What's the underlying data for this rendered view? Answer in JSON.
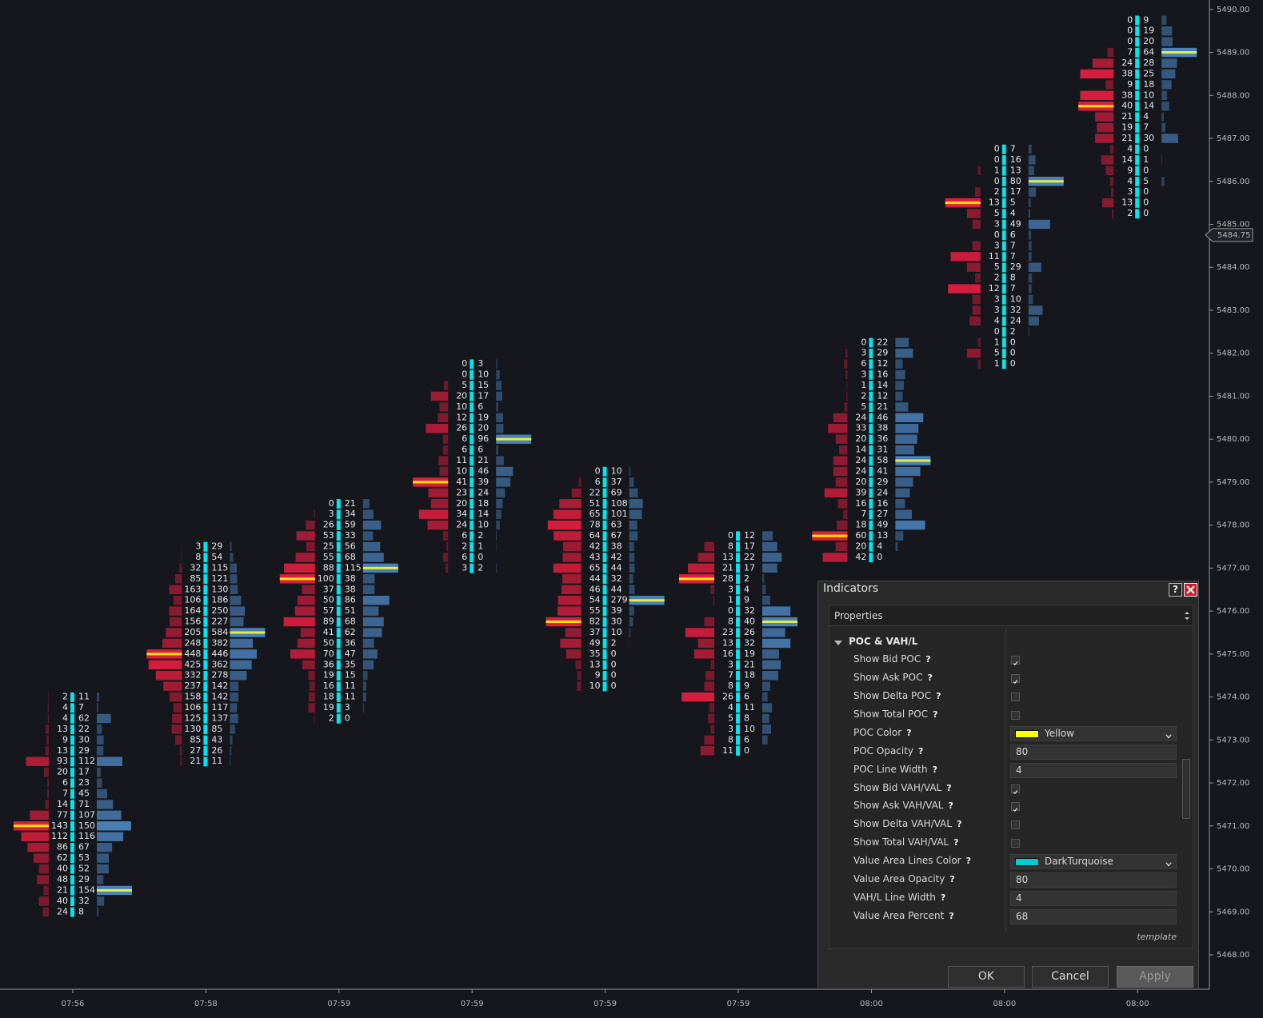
{
  "chart_data": {
    "type": "footprint",
    "ylim": [
      5467.2,
      5490.22
    ],
    "yticks": [
      {
        "value": 5490,
        "label": "5490.00"
      },
      {
        "value": 5489,
        "label": "5489.00"
      },
      {
        "value": 5488,
        "label": "5488.00"
      },
      {
        "value": 5487,
        "label": "5487.00"
      },
      {
        "value": 5486,
        "label": "5486.00"
      },
      {
        "value": 5485,
        "label": "5485.00"
      },
      {
        "value": 5484,
        "label": "5484.00"
      },
      {
        "value": 5483,
        "label": "5483.00"
      },
      {
        "value": 5482,
        "label": "5482.00"
      },
      {
        "value": 5481,
        "label": "5481.00"
      },
      {
        "value": 5480,
        "label": "5480.00"
      },
      {
        "value": 5479,
        "label": "5479.00"
      },
      {
        "value": 5478,
        "label": "5478.00"
      },
      {
        "value": 5477,
        "label": "5477.00"
      },
      {
        "value": 5476,
        "label": "5476.00"
      },
      {
        "value": 5475,
        "label": "5475.00"
      },
      {
        "value": 5474,
        "label": "5474.00"
      },
      {
        "value": 5473,
        "label": "5473.00"
      },
      {
        "value": 5472,
        "label": "5472.00"
      },
      {
        "value": 5471,
        "label": "5471.00"
      },
      {
        "value": 5470,
        "label": "5470.00"
      },
      {
        "value": 5469,
        "label": "5469.00"
      },
      {
        "value": 5468,
        "label": "5468.00"
      }
    ],
    "current_price": 5484.75,
    "bars": [
      {
        "time": "07:56",
        "high": 5474.0,
        "low": 5469.0,
        "rows": [
          [
            2,
            11
          ],
          [
            4,
            7
          ],
          [
            4,
            62
          ],
          [
            13,
            22
          ],
          [
            9,
            30
          ],
          [
            13,
            29
          ],
          [
            93,
            112
          ],
          [
            20,
            17
          ],
          [
            6,
            23
          ],
          [
            7,
            45
          ],
          [
            14,
            71
          ],
          [
            77,
            107
          ],
          [
            143,
            150
          ],
          [
            112,
            116
          ],
          [
            86,
            67
          ],
          [
            62,
            53
          ],
          [
            40,
            52
          ],
          [
            48,
            29
          ],
          [
            21,
            154
          ],
          [
            40,
            32
          ],
          [
            24,
            8
          ]
        ]
      },
      {
        "time": "07:58",
        "high": 5477.5,
        "low": 5472.5,
        "rows": [
          [
            3,
            29
          ],
          [
            8,
            54
          ],
          [
            32,
            115
          ],
          [
            85,
            121
          ],
          [
            163,
            130
          ],
          [
            106,
            186
          ],
          [
            164,
            250
          ],
          [
            156,
            227
          ],
          [
            205,
            584
          ],
          [
            248,
            382
          ],
          [
            448,
            446
          ],
          [
            425,
            362
          ],
          [
            332,
            278
          ],
          [
            237,
            142
          ],
          [
            158,
            142
          ],
          [
            106,
            117
          ],
          [
            125,
            137
          ],
          [
            130,
            85
          ],
          [
            85,
            43
          ],
          [
            27,
            26
          ],
          [
            21,
            11
          ]
        ]
      },
      {
        "time": "07:59",
        "high": 5478.5,
        "low": 5473.5,
        "rows": [
          [
            0,
            21
          ],
          [
            3,
            34
          ],
          [
            26,
            59
          ],
          [
            53,
            33
          ],
          [
            25,
            56
          ],
          [
            55,
            68
          ],
          [
            88,
            115
          ],
          [
            100,
            38
          ],
          [
            37,
            38
          ],
          [
            50,
            86
          ],
          [
            57,
            51
          ],
          [
            89,
            68
          ],
          [
            41,
            62
          ],
          [
            50,
            36
          ],
          [
            70,
            47
          ],
          [
            36,
            35
          ],
          [
            19,
            15
          ],
          [
            16,
            11
          ],
          [
            18,
            11
          ],
          [
            19,
            3
          ],
          [
            2,
            0
          ]
        ]
      },
      {
        "time": "07:59",
        "high": 5481.75,
        "low": 5477.0,
        "rows": [
          [
            0,
            3
          ],
          [
            0,
            10
          ],
          [
            5,
            15
          ],
          [
            20,
            17
          ],
          [
            10,
            6
          ],
          [
            12,
            19
          ],
          [
            26,
            20
          ],
          [
            6,
            96
          ],
          [
            6,
            6
          ],
          [
            11,
            21
          ],
          [
            10,
            46
          ],
          [
            41,
            39
          ],
          [
            23,
            24
          ],
          [
            20,
            18
          ],
          [
            34,
            14
          ],
          [
            24,
            10
          ],
          [
            6,
            2
          ],
          [
            2,
            1
          ],
          [
            6,
            0
          ],
          [
            3,
            2
          ]
        ]
      },
      {
        "time": "07:59",
        "high": 5479.25,
        "low": 5474.25,
        "rows": [
          [
            0,
            10
          ],
          [
            6,
            37
          ],
          [
            22,
            69
          ],
          [
            51,
            108
          ],
          [
            65,
            101
          ],
          [
            78,
            63
          ],
          [
            64,
            67
          ],
          [
            42,
            38
          ],
          [
            43,
            42
          ],
          [
            65,
            44
          ],
          [
            44,
            32
          ],
          [
            46,
            44
          ],
          [
            54,
            279
          ],
          [
            55,
            39
          ],
          [
            82,
            30
          ],
          [
            37,
            10
          ],
          [
            49,
            2
          ],
          [
            35,
            0
          ],
          [
            13,
            0
          ],
          [
            9,
            0
          ],
          [
            10,
            0
          ]
        ]
      },
      {
        "time": "07:59",
        "high": 5477.75,
        "low": 5472.75,
        "rows": [
          [
            0,
            12
          ],
          [
            8,
            17
          ],
          [
            13,
            22
          ],
          [
            21,
            17
          ],
          [
            28,
            2
          ],
          [
            3,
            4
          ],
          [
            1,
            9
          ],
          [
            0,
            32
          ],
          [
            8,
            40
          ],
          [
            23,
            26
          ],
          [
            13,
            32
          ],
          [
            16,
            19
          ],
          [
            3,
            21
          ],
          [
            7,
            18
          ],
          [
            8,
            9
          ],
          [
            26,
            6
          ],
          [
            4,
            11
          ],
          [
            5,
            8
          ],
          [
            3,
            10
          ],
          [
            8,
            6
          ],
          [
            11,
            0
          ]
        ]
      },
      {
        "time": "08:00",
        "high": 5482.25,
        "low": 5477.25,
        "rows": [
          [
            0,
            22
          ],
          [
            3,
            29
          ],
          [
            6,
            12
          ],
          [
            3,
            16
          ],
          [
            1,
            14
          ],
          [
            2,
            12
          ],
          [
            5,
            21
          ],
          [
            24,
            46
          ],
          [
            33,
            38
          ],
          [
            20,
            36
          ],
          [
            14,
            31
          ],
          [
            24,
            58
          ],
          [
            24,
            41
          ],
          [
            20,
            29
          ],
          [
            39,
            24
          ],
          [
            16,
            16
          ],
          [
            7,
            27
          ],
          [
            18,
            49
          ],
          [
            60,
            13
          ],
          [
            20,
            4
          ],
          [
            42,
            0
          ]
        ]
      },
      {
        "time": "08:00",
        "high": 5486.75,
        "low": 5481.75,
        "rows": [
          [
            0,
            7
          ],
          [
            0,
            16
          ],
          [
            1,
            13
          ],
          [
            0,
            80
          ],
          [
            2,
            17
          ],
          [
            13,
            5
          ],
          [
            5,
            4
          ],
          [
            3,
            49
          ],
          [
            0,
            6
          ],
          [
            3,
            7
          ],
          [
            11,
            7
          ],
          [
            5,
            29
          ],
          [
            2,
            8
          ],
          [
            12,
            7
          ],
          [
            3,
            10
          ],
          [
            3,
            32
          ],
          [
            4,
            24
          ],
          [
            0,
            2
          ],
          [
            1,
            0
          ],
          [
            5,
            0
          ],
          [
            1,
            0
          ]
        ]
      },
      {
        "time": "08:00",
        "high": 5489.75,
        "low": 5485.25,
        "rows": [
          [
            0,
            9
          ],
          [
            0,
            19
          ],
          [
            0,
            20
          ],
          [
            7,
            64
          ],
          [
            24,
            28
          ],
          [
            38,
            25
          ],
          [
            9,
            18
          ],
          [
            38,
            10
          ],
          [
            40,
            14
          ],
          [
            21,
            4
          ],
          [
            19,
            7
          ],
          [
            21,
            30
          ],
          [
            4,
            0
          ],
          [
            14,
            1
          ],
          [
            9,
            0
          ],
          [
            4,
            5
          ],
          [
            3,
            0
          ],
          [
            13,
            0
          ],
          [
            2,
            0
          ]
        ]
      }
    ]
  },
  "dialog": {
    "title": "Indicators",
    "help_icon": "?",
    "tab": "Properties",
    "section": "POC & VAH/L",
    "properties": [
      {
        "label": "Show Bid POC",
        "checked": true
      },
      {
        "label": "Show Ask POC",
        "checked": true
      },
      {
        "label": "Show Delta POC",
        "checked": false
      },
      {
        "label": "Show Total POC",
        "checked": false
      },
      {
        "label": "POC Color",
        "value": "Yellow",
        "color": "#ffff00"
      },
      {
        "label": "POC Opacity",
        "value": 80
      },
      {
        "label": "POC Line Width",
        "value": 4
      },
      {
        "label": "Show Bid VAH/VAL",
        "checked": true
      },
      {
        "label": "Show Ask VAH/VAL",
        "checked": true
      },
      {
        "label": "Show Delta VAH/VAL",
        "checked": false
      },
      {
        "label": "Show Total VAH/VAL",
        "checked": false
      },
      {
        "label": "Value Area Lines Color",
        "value": "DarkTurquoise",
        "color": "#00ced1"
      },
      {
        "label": "Value Area Opacity",
        "value": 80
      },
      {
        "label": "VAH/L Line Width",
        "value": 4
      },
      {
        "label": "Value Area Percent",
        "value": 68
      }
    ],
    "footer": "template",
    "buttons": [
      "OK",
      "Cancel",
      "Apply"
    ]
  }
}
